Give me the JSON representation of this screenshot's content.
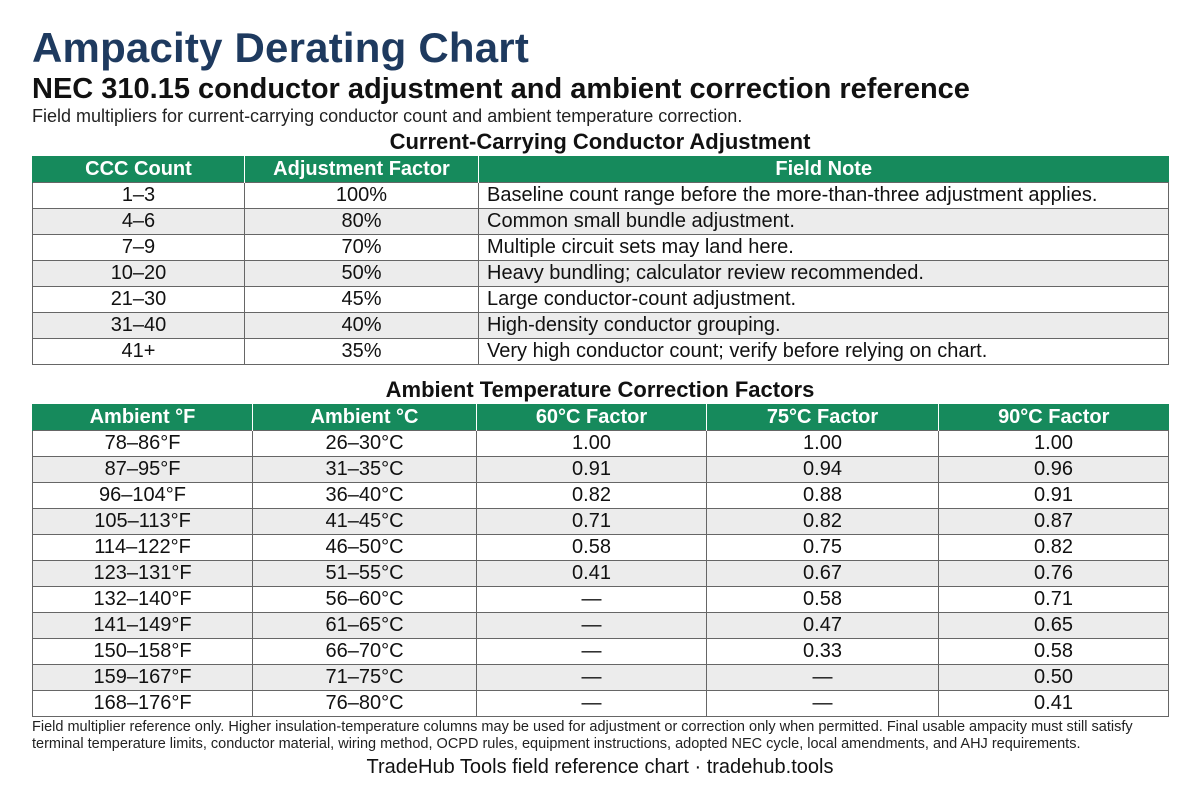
{
  "header": {
    "title": "Ampacity Derating Chart",
    "subtitle": "NEC 310.15 conductor adjustment and ambient correction reference",
    "description": "Field multipliers for current-carrying conductor count and ambient temperature correction."
  },
  "adjustment_table": {
    "title": "Current-Carrying Conductor Adjustment",
    "columns": [
      "CCC Count",
      "Adjustment Factor",
      "Field Note"
    ],
    "rows": [
      [
        "1–3",
        "100%",
        "Baseline count range before the more-than-three adjustment applies."
      ],
      [
        "4–6",
        "80%",
        "Common small bundle adjustment."
      ],
      [
        "7–9",
        "70%",
        "Multiple circuit sets may land here."
      ],
      [
        "10–20",
        "50%",
        "Heavy bundling; calculator review recommended."
      ],
      [
        "21–30",
        "45%",
        "Large conductor-count adjustment."
      ],
      [
        "31–40",
        "40%",
        "High-density conductor grouping."
      ],
      [
        "41+",
        "35%",
        "Very high conductor count; verify before relying on chart."
      ]
    ]
  },
  "ambient_table": {
    "title": "Ambient Temperature Correction Factors",
    "columns": [
      "Ambient °F",
      "Ambient °C",
      "60°C Factor",
      "75°C Factor",
      "90°C Factor"
    ],
    "rows": [
      [
        "78–86°F",
        "26–30°C",
        "1.00",
        "1.00",
        "1.00"
      ],
      [
        "87–95°F",
        "31–35°C",
        "0.91",
        "0.94",
        "0.96"
      ],
      [
        "96–104°F",
        "36–40°C",
        "0.82",
        "0.88",
        "0.91"
      ],
      [
        "105–113°F",
        "41–45°C",
        "0.71",
        "0.82",
        "0.87"
      ],
      [
        "114–122°F",
        "46–50°C",
        "0.58",
        "0.75",
        "0.82"
      ],
      [
        "123–131°F",
        "51–55°C",
        "0.41",
        "0.67",
        "0.76"
      ],
      [
        "132–140°F",
        "56–60°C",
        "—",
        "0.58",
        "0.71"
      ],
      [
        "141–149°F",
        "61–65°C",
        "—",
        "0.47",
        "0.65"
      ],
      [
        "150–158°F",
        "66–70°C",
        "—",
        "0.33",
        "0.58"
      ],
      [
        "159–167°F",
        "71–75°C",
        "—",
        "—",
        "0.50"
      ],
      [
        "168–176°F",
        "76–80°C",
        "—",
        "—",
        "0.41"
      ]
    ]
  },
  "footnote": "Field multiplier reference only. Higher insulation-temperature columns may be used for adjustment or correction only when permitted. Final usable ampacity must still satisfy terminal temperature limits, conductor material, wiring method, OCPD rules, equipment instructions, adopted NEC cycle, local amendments, and AHJ requirements.",
  "footer": "TradeHub Tools field reference chart · tradehub.tools",
  "colors": {
    "title": "#1e3a5f",
    "header_bg": "#168a5c",
    "alt_row_bg": "#ececec"
  }
}
